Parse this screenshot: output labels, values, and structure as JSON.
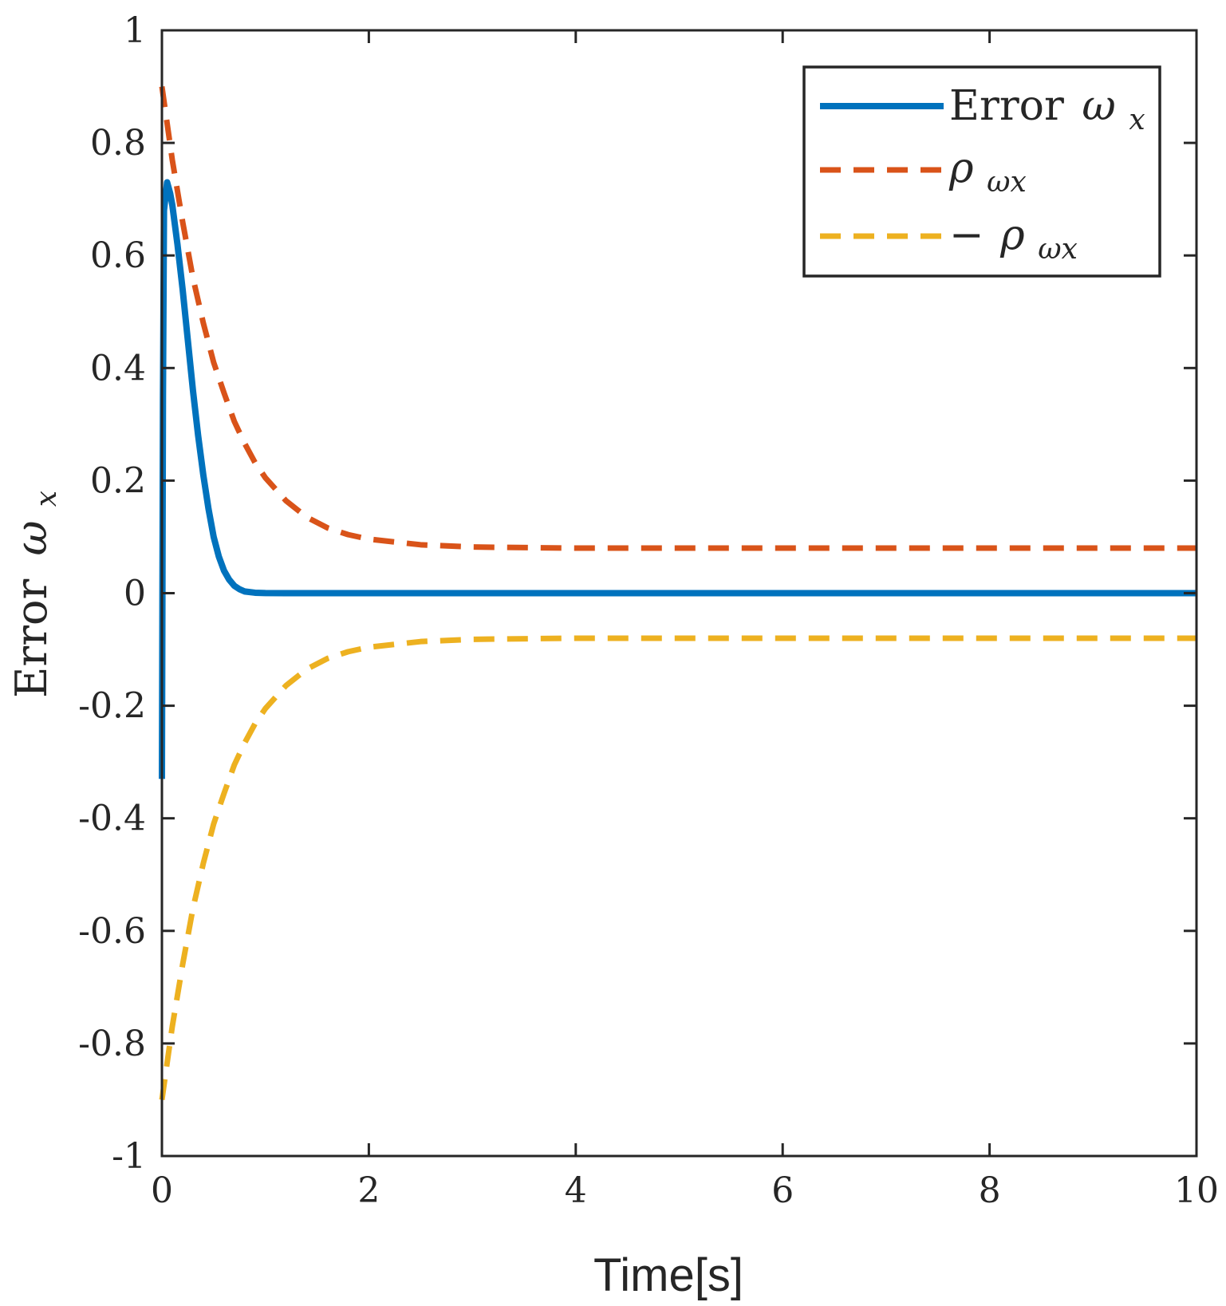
{
  "chart_data": {
    "type": "line",
    "title": "",
    "xlabel": "Time[s]",
    "ylabel": {
      "text": "Error",
      "symbol": "ω",
      "subscript": "x"
    },
    "xlim": [
      0,
      10
    ],
    "ylim": [
      -1,
      1
    ],
    "xticks": [
      0,
      2,
      4,
      6,
      8,
      10
    ],
    "xtick_labels": [
      "0",
      "2",
      "4",
      "6",
      "8",
      "10"
    ],
    "yticks": [
      -1,
      -0.8,
      -0.6,
      -0.4,
      -0.2,
      0,
      0.2,
      0.4,
      0.6,
      0.8,
      1
    ],
    "ytick_labels": [
      "-1",
      "-0.8",
      "-0.6",
      "-0.4",
      "-0.2",
      "0",
      "0.2",
      "0.4",
      "0.6",
      "0.8",
      "1"
    ],
    "grid": false,
    "legend_position": "top-right",
    "series": [
      {
        "name": "Error ω_x",
        "legend": {
          "text": "Error ",
          "symbol": "ω",
          "subscript": "x"
        },
        "color": "#0072BD",
        "style": "solid",
        "x": [
          0,
          0.01,
          0.02,
          0.05,
          0.08,
          0.1,
          0.15,
          0.2,
          0.25,
          0.3,
          0.35,
          0.4,
          0.45,
          0.5,
          0.55,
          0.6,
          0.65,
          0.7,
          0.75,
          0.8,
          0.9,
          1.0,
          1.2,
          1.5,
          2,
          3,
          4,
          5,
          6,
          7,
          8,
          9,
          10
        ],
        "y": [
          -0.33,
          0.35,
          0.68,
          0.73,
          0.71,
          0.69,
          0.62,
          0.54,
          0.45,
          0.36,
          0.28,
          0.21,
          0.15,
          0.1,
          0.065,
          0.04,
          0.024,
          0.013,
          0.007,
          0.003,
          0.0008,
          0.0002,
          0,
          0,
          0,
          0,
          0,
          0,
          0,
          0,
          0,
          0,
          0
        ]
      },
      {
        "name": "ρ_ωx",
        "legend": {
          "text": "",
          "symbol": "ρ",
          "subscript": "ωx"
        },
        "color": "#D95319",
        "style": "dashed",
        "x": [
          0,
          0.1,
          0.2,
          0.3,
          0.4,
          0.5,
          0.6,
          0.7,
          0.8,
          0.9,
          1.0,
          1.2,
          1.4,
          1.6,
          1.8,
          2.0,
          2.5,
          3,
          4,
          5,
          6,
          7,
          8,
          9,
          10
        ],
        "y": [
          0.9,
          0.77,
          0.66,
          0.56,
          0.48,
          0.41,
          0.356,
          0.305,
          0.266,
          0.232,
          0.205,
          0.164,
          0.135,
          0.116,
          0.104,
          0.096,
          0.086,
          0.082,
          0.08,
          0.08,
          0.08,
          0.08,
          0.08,
          0.08,
          0.08
        ]
      },
      {
        "name": "-ρ_ωx",
        "legend": {
          "text": "−",
          "symbol": "ρ",
          "subscript": "ωx"
        },
        "color": "#EDB120",
        "style": "dashed",
        "x": [
          0,
          0.1,
          0.2,
          0.3,
          0.4,
          0.5,
          0.6,
          0.7,
          0.8,
          0.9,
          1.0,
          1.2,
          1.4,
          1.6,
          1.8,
          2.0,
          2.5,
          3,
          4,
          5,
          6,
          7,
          8,
          9,
          10
        ],
        "y": [
          -0.9,
          -0.77,
          -0.66,
          -0.56,
          -0.48,
          -0.41,
          -0.356,
          -0.305,
          -0.266,
          -0.232,
          -0.205,
          -0.164,
          -0.135,
          -0.116,
          -0.104,
          -0.096,
          -0.086,
          -0.082,
          -0.08,
          -0.08,
          -0.08,
          -0.08,
          -0.08,
          -0.08,
          -0.08
        ]
      }
    ]
  }
}
